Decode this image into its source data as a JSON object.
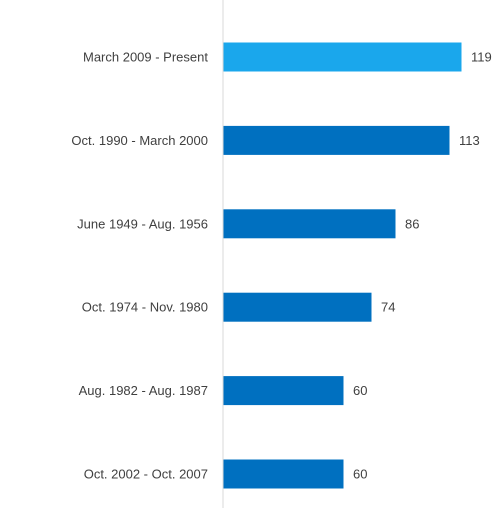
{
  "chart_data": {
    "type": "bar",
    "orientation": "horizontal",
    "categories": [
      "March 2009 - Present",
      "Oct. 1990 - March 2000",
      "June 1949 - Aug. 1956",
      "Oct. 1974 - Nov. 1980",
      "Aug. 1982 - Aug. 1987",
      "Oct. 2002 - Oct. 2007"
    ],
    "values": [
      119,
      113,
      86,
      74,
      60,
      60
    ],
    "value_labels": [
      "119",
      "113",
      "86",
      "74",
      "60",
      "60"
    ],
    "bar_colors": [
      "#1aa7ec",
      "#0070c0",
      "#0070c0",
      "#0070c0",
      "#0070c0",
      "#0070c0"
    ],
    "xlim": [
      0,
      119
    ],
    "grid": false,
    "legend": "none"
  },
  "colors": {
    "highlight": "#1aa7ec",
    "bar": "#0070c0",
    "axis": "#d9d9d9",
    "text": "#404040"
  }
}
